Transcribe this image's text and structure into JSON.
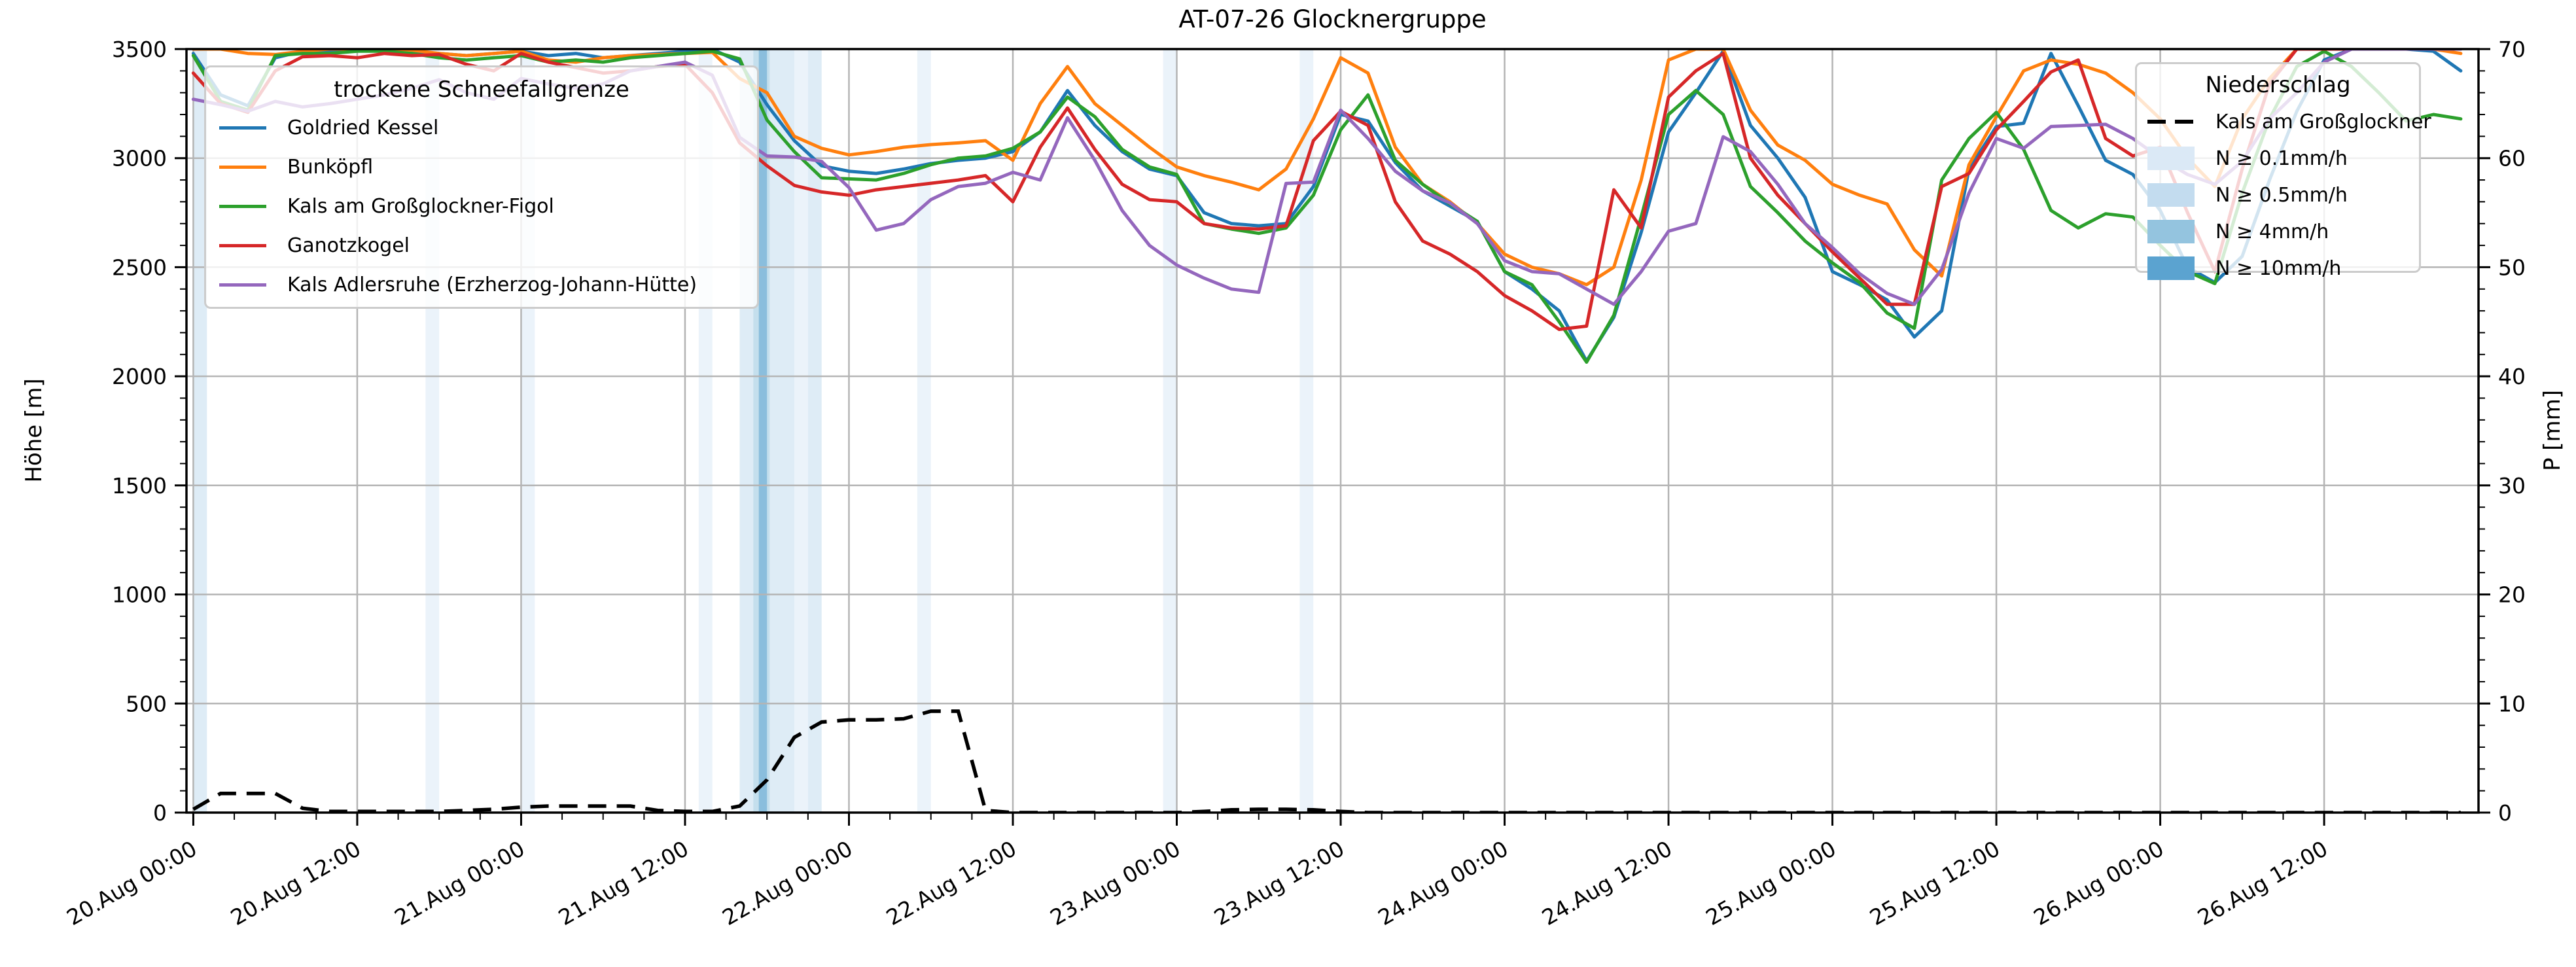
{
  "title": "AT-07-26 Glocknergruppe",
  "axes": {
    "left_label": "Höhe [m]",
    "right_label": "P [mm]"
  },
  "legend_snowline": {
    "title": "trockene Schneefallgrenze",
    "items": [
      {
        "label": "Goldried Kessel",
        "color": "#1f77b4"
      },
      {
        "label": "Bunköpfl",
        "color": "#ff7f0e"
      },
      {
        "label": "Kals am Großglockner-Figol",
        "color": "#2ca02c"
      },
      {
        "label": "Ganotzkogel",
        "color": "#d62728"
      },
      {
        "label": "Kals Adlersruhe (Erzherzog-Johann-Hütte)",
        "color": "#9467bd"
      }
    ]
  },
  "legend_precip": {
    "title": "Niederschlag",
    "line_label": "Kals am Großglockner",
    "line_color": "#000000",
    "bands": [
      {
        "label": "N ≥ 0.1mm/h",
        "color": "#dbe9f6"
      },
      {
        "label": "N ≥ 0.5mm/h",
        "color": "#c3dcef"
      },
      {
        "label": "N ≥ 4mm/h",
        "color": "#94c4df"
      },
      {
        "label": "N ≥ 10mm/h",
        "color": "#5ba3d0"
      }
    ]
  },
  "chart_data": {
    "type": "line",
    "title": "AT-07-26 Glocknergruppe",
    "ylabel_left": "Höhe [m]",
    "ylabel_right": "P [mm]",
    "ylim_left": [
      0,
      3500
    ],
    "ylim_right": [
      0,
      70
    ],
    "x_range_h": [
      -0.5,
      167.3
    ],
    "grid": true,
    "left_ticks": [
      0,
      500,
      1000,
      1500,
      2000,
      2500,
      3000,
      3500
    ],
    "right_ticks": [
      0,
      10,
      20,
      30,
      40,
      50,
      60,
      70
    ],
    "x_tick_hours": [
      0,
      12,
      24,
      36,
      48,
      60,
      72,
      84,
      96,
      108,
      120,
      132,
      144,
      156
    ],
    "x_tick_labels": [
      "20.Aug 00:00",
      "20.Aug 12:00",
      "21.Aug 00:00",
      "21.Aug 12:00",
      "22.Aug 00:00",
      "22.Aug 12:00",
      "23.Aug 00:00",
      "23.Aug 12:00",
      "24.Aug 00:00",
      "24.Aug 12:00",
      "25.Aug 00:00",
      "25.Aug 12:00",
      "26.Aug 00:00",
      "26.Aug 12:00"
    ],
    "hours": [
      0,
      2,
      4,
      6,
      8,
      10,
      12,
      14,
      16,
      18,
      20,
      22,
      24,
      26,
      28,
      30,
      32,
      34,
      36,
      38,
      40,
      42,
      44,
      46,
      48,
      50,
      52,
      54,
      56,
      58,
      60,
      62,
      64,
      66,
      68,
      70,
      72,
      74,
      76,
      78,
      80,
      82,
      84,
      86,
      88,
      90,
      92,
      94,
      96,
      98,
      100,
      102,
      104,
      106,
      108,
      110,
      112,
      114,
      116,
      118,
      120,
      122,
      124,
      126,
      128,
      130,
      132,
      134,
      136,
      138,
      140,
      142,
      144,
      146,
      148,
      150,
      152,
      154,
      156,
      158,
      160,
      162,
      164,
      166
    ],
    "series": [
      {
        "name": "Goldried Kessel",
        "color": "#1f77b4",
        "axis": "left",
        "values": [
          3480,
          3290,
          3240,
          3460,
          3490,
          3490,
          3500,
          3500,
          3490,
          3480,
          3470,
          3480,
          3490,
          3470,
          3480,
          3460,
          3470,
          3480,
          3490,
          3500,
          3440,
          3245,
          3080,
          2965,
          2940,
          2930,
          2950,
          2975,
          2990,
          3000,
          3030,
          3120,
          3310,
          3150,
          3030,
          2950,
          2920,
          2750,
          2700,
          2690,
          2700,
          2870,
          3200,
          3170,
          2980,
          2850,
          2780,
          2710,
          2480,
          2400,
          2300,
          2070,
          2270,
          2660,
          3120,
          3300,
          3490,
          3150,
          3000,
          2820,
          2480,
          2420,
          2350,
          2180,
          2300,
          2950,
          3145,
          3160,
          3480,
          3240,
          2990,
          2925,
          2760,
          2500,
          2430,
          2550,
          2900,
          3215,
          3450,
          3500,
          3500,
          3500,
          3490,
          3400
        ]
      },
      {
        "name": "Bunköpfl",
        "color": "#ff7f0e",
        "axis": "left",
        "values": [
          3500,
          3500,
          3480,
          3475,
          3490,
          3500,
          3500,
          3500,
          3495,
          3480,
          3470,
          3480,
          3490,
          3450,
          3440,
          3460,
          3470,
          3475,
          3480,
          3485,
          3365,
          3300,
          3100,
          3045,
          3015,
          3030,
          3050,
          3062,
          3070,
          3080,
          2990,
          3250,
          3420,
          3250,
          3150,
          3050,
          2960,
          2920,
          2890,
          2855,
          2950,
          3180,
          3460,
          3390,
          3050,
          2880,
          2800,
          2700,
          2560,
          2500,
          2470,
          2420,
          2500,
          2900,
          3450,
          3500,
          3500,
          3220,
          3060,
          2990,
          2880,
          2830,
          2790,
          2580,
          2460,
          2970,
          3190,
          3400,
          3450,
          3430,
          3390,
          3300,
          3180,
          3000,
          2870,
          3180,
          3365,
          3500,
          3500,
          3500,
          3500,
          3500,
          3500,
          3480
        ]
      },
      {
        "name": "Kals am Großglockner-Figol",
        "color": "#2ca02c",
        "axis": "left",
        "values": [
          3470,
          3260,
          3220,
          3470,
          3480,
          3480,
          3490,
          3490,
          3480,
          3460,
          3450,
          3460,
          3470,
          3440,
          3450,
          3440,
          3460,
          3470,
          3480,
          3490,
          3455,
          3175,
          3030,
          2910,
          2905,
          2900,
          2930,
          2970,
          3000,
          3010,
          3045,
          3120,
          3280,
          3190,
          3040,
          2960,
          2925,
          2700,
          2675,
          2655,
          2680,
          2830,
          3130,
          3290,
          2990,
          2880,
          2790,
          2710,
          2480,
          2420,
          2250,
          2065,
          2280,
          2730,
          3200,
          3310,
          3200,
          2870,
          2750,
          2620,
          2520,
          2430,
          2290,
          2220,
          2900,
          3090,
          3210,
          3040,
          2760,
          2680,
          2745,
          2730,
          2600,
          2480,
          2425,
          2840,
          3180,
          3420,
          3490,
          3420,
          3300,
          3170,
          3200,
          3180
        ]
      },
      {
        "name": "Ganotzkogel",
        "color": "#d62728",
        "axis": "left",
        "values": [
          3390,
          3250,
          3210,
          3400,
          3465,
          3470,
          3460,
          3480,
          3470,
          3475,
          3430,
          3400,
          3480,
          3440,
          3415,
          3390,
          3400,
          3420,
          3430,
          3300,
          3070,
          2965,
          2875,
          2845,
          2830,
          2855,
          2870,
          2885,
          2900,
          2920,
          2800,
          3050,
          3230,
          3040,
          2880,
          2810,
          2800,
          2700,
          2680,
          2675,
          2690,
          3080,
          3215,
          3150,
          2800,
          2620,
          2560,
          2480,
          2370,
          2300,
          2215,
          2230,
          2855,
          2680,
          3280,
          3400,
          3480,
          3000,
          2830,
          2700,
          2570,
          2450,
          2330,
          2330,
          2870,
          2930,
          3130,
          3260,
          3395,
          3450,
          3090,
          3010,
          3050,
          2750,
          2480,
          2950,
          3340,
          3500,
          3500,
          3500,
          3500,
          3500,
          3500,
          3500
        ]
      },
      {
        "name": "Kals Adlersruhe (Erzherzog-Johann-Hütte)",
        "color": "#9467bd",
        "axis": "left",
        "values": [
          3270,
          3245,
          3215,
          3260,
          3235,
          3250,
          3270,
          3290,
          3320,
          3360,
          3300,
          3270,
          3365,
          3340,
          3320,
          3340,
          3400,
          3420,
          3440,
          3380,
          3095,
          3010,
          3005,
          2985,
          2865,
          2670,
          2700,
          2810,
          2870,
          2885,
          2935,
          2900,
          3185,
          2990,
          2760,
          2600,
          2510,
          2450,
          2400,
          2385,
          2884,
          2890,
          3220,
          3090,
          2940,
          2850,
          2795,
          2700,
          2530,
          2480,
          2470,
          2400,
          2330,
          2480,
          2665,
          2700,
          3098,
          3030,
          2880,
          2700,
          2590,
          2470,
          2380,
          2330,
          2490,
          2840,
          3090,
          3045,
          3145,
          3150,
          3155,
          3090,
          3000,
          2925,
          2880,
          2985,
          3180,
          3300,
          3440,
          3500,
          3500,
          3500,
          3500,
          3500
        ]
      }
    ],
    "precip_line": {
      "name": "Kals am Großglockner",
      "color": "#000000",
      "axis": "right",
      "dashed": true,
      "values_mm": [
        0.3,
        1.76,
        1.76,
        1.76,
        0.4,
        0.1,
        0.1,
        0.1,
        0.1,
        0.1,
        0.2,
        0.3,
        0.5,
        0.6,
        0.6,
        0.6,
        0.6,
        0.2,
        0.1,
        0.1,
        0.6,
        3.0,
        6.9,
        8.3,
        8.5,
        8.5,
        8.6,
        9.3,
        9.3,
        0.2,
        0,
        0,
        0,
        0,
        0,
        0,
        0,
        0.1,
        0.25,
        0.3,
        0.3,
        0.25,
        0.1,
        0,
        0,
        0,
        0,
        0,
        0,
        0,
        0,
        0,
        0,
        0,
        0,
        0,
        0,
        0,
        0,
        0,
        0,
        0,
        0,
        0,
        0,
        0,
        0,
        0,
        0,
        0,
        0,
        0,
        0,
        0,
        0,
        0,
        0,
        0,
        0,
        0,
        0,
        0,
        0,
        0
      ]
    },
    "precip_bands": [
      {
        "start_h": 0,
        "end_h": 1,
        "level": "0.5"
      },
      {
        "start_h": 17,
        "end_h": 18,
        "level": "0.1"
      },
      {
        "start_h": 24,
        "end_h": 25,
        "level": "0.1"
      },
      {
        "start_h": 37,
        "end_h": 38,
        "level": "0.1"
      },
      {
        "start_h": 40,
        "end_h": 41,
        "level": "0.5"
      },
      {
        "start_h": 41,
        "end_h": 42.2,
        "level": "4"
      },
      {
        "start_h": 41.4,
        "end_h": 42,
        "level": "10"
      },
      {
        "start_h": 42.2,
        "end_h": 44,
        "level": "0.5"
      },
      {
        "start_h": 44,
        "end_h": 45,
        "level": "0.1"
      },
      {
        "start_h": 45,
        "end_h": 46,
        "level": "0.5"
      },
      {
        "start_h": 53,
        "end_h": 54,
        "level": "0.1"
      },
      {
        "start_h": 71,
        "end_h": 72,
        "level": "0.1"
      },
      {
        "start_h": 81,
        "end_h": 82,
        "level": "0.1"
      }
    ],
    "band_colors": {
      "0.1": "#dbe9f6",
      "0.5": "#c3dcef",
      "4": "#94c4df",
      "10": "#5ba3d0"
    },
    "band_opacity": 0.55,
    "grid_color": "#b4b4b4"
  }
}
